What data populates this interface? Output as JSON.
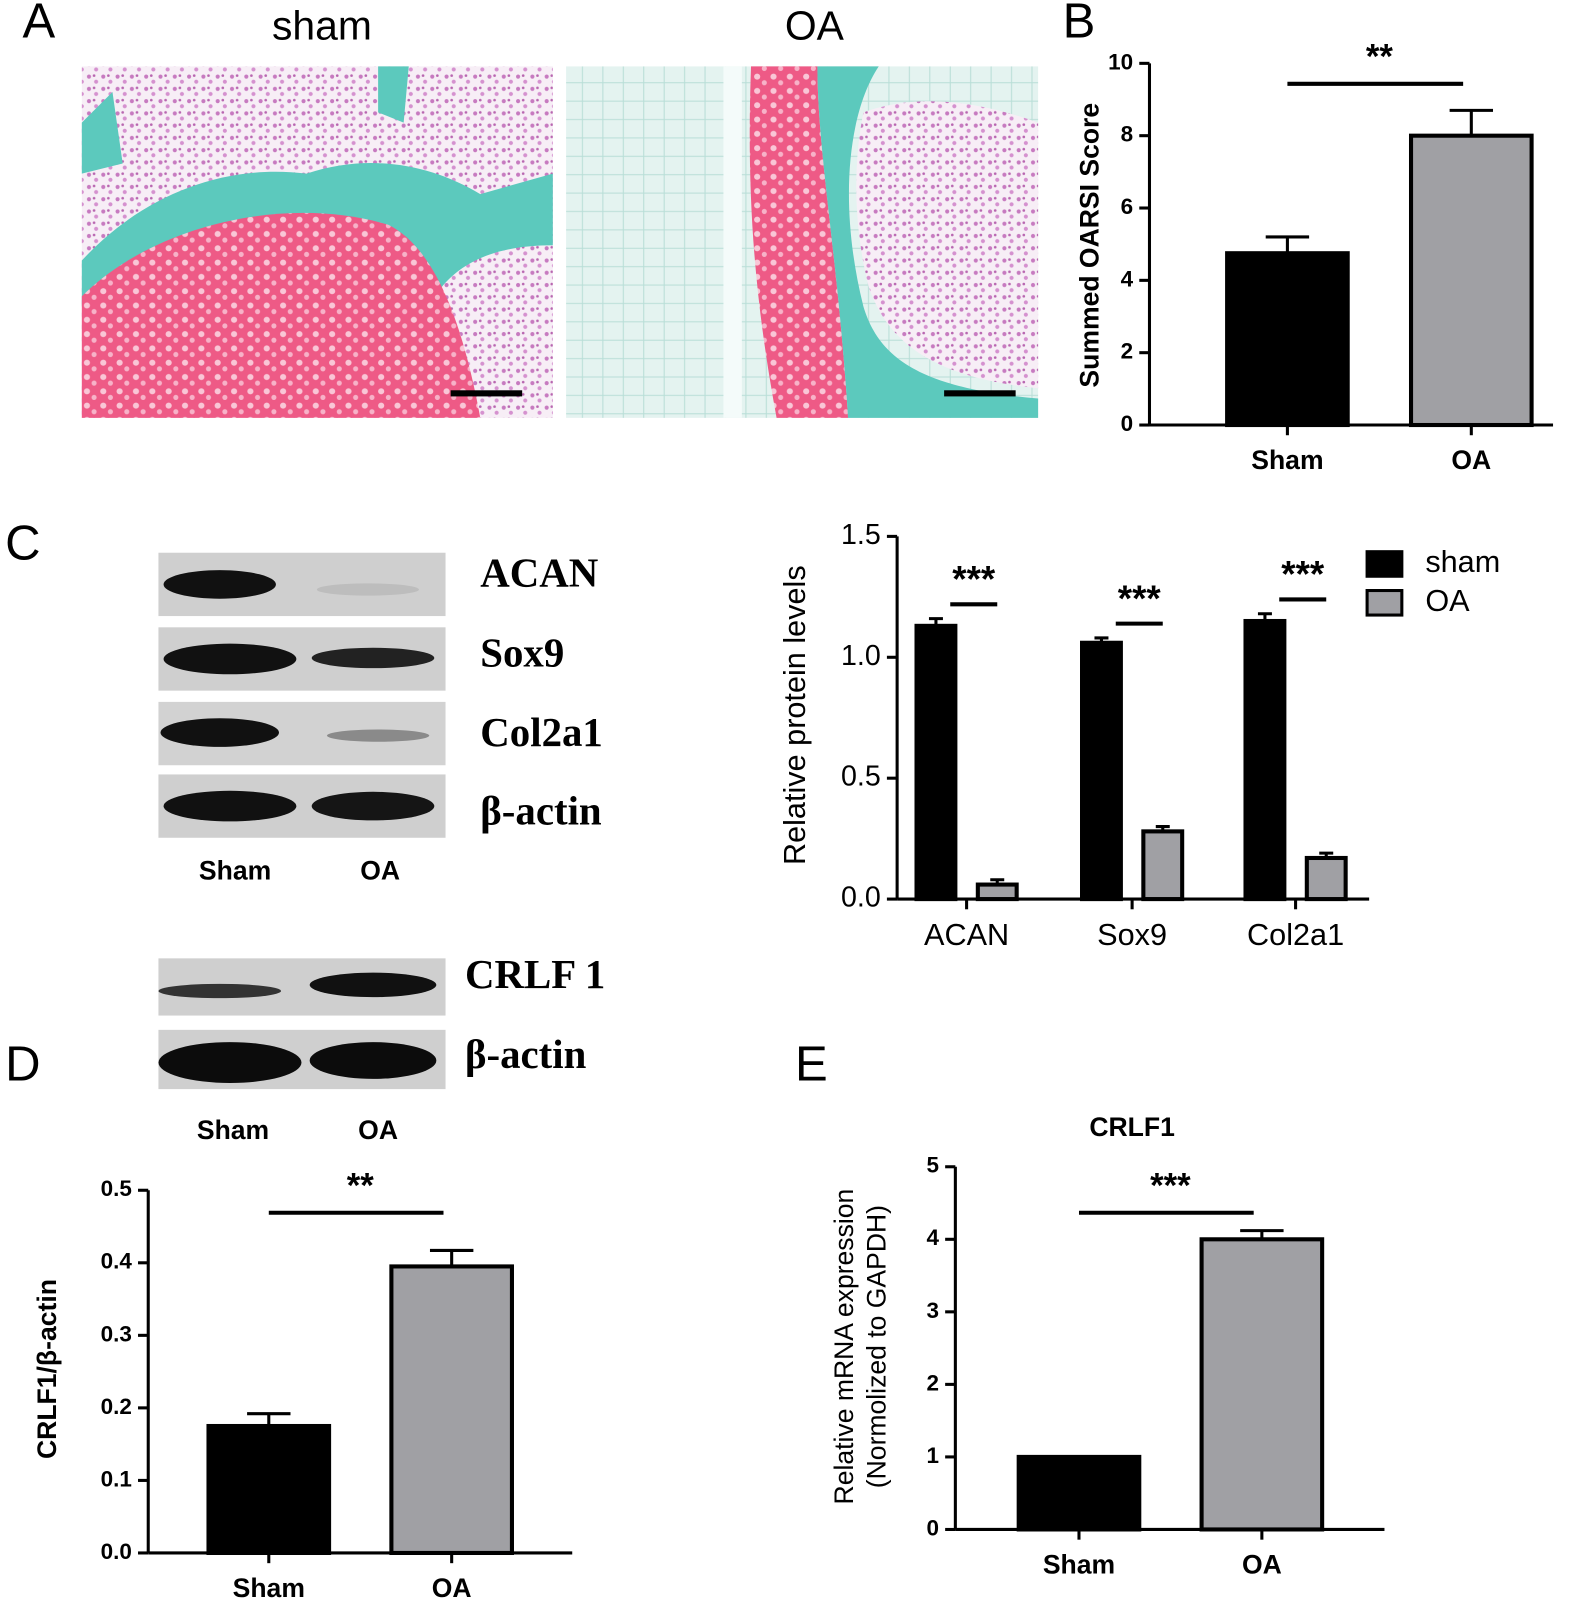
{
  "panel_labels": [
    "A",
    "B",
    "C",
    "D",
    "E"
  ],
  "histology": {
    "labels": [
      "sham",
      "OA"
    ]
  },
  "blot_c": {
    "proteins": [
      "ACAN",
      "Sox9",
      "Col2a1",
      "β-actin"
    ],
    "lanes": [
      "Sham",
      "OA"
    ]
  },
  "blot_d": {
    "proteins": [
      "CRLF 1",
      "β-actin"
    ],
    "lanes": [
      "Sham",
      "OA"
    ]
  },
  "chart_data": [
    {
      "type": "bar",
      "ylabel": "Summed OARSI Score",
      "categories": [
        "Sham",
        "OA"
      ],
      "values": [
        4.75,
        8.0
      ],
      "errors": [
        0.45,
        0.7
      ],
      "colors": [
        "#000000",
        "#a0a0a4"
      ],
      "ylim": [
        0,
        10
      ],
      "yticks": [
        0,
        2,
        4,
        6,
        8,
        10
      ],
      "significance": "**"
    },
    {
      "type": "bar",
      "ylabel": "Relative protein  levels",
      "categories": [
        "ACAN",
        "Sox9",
        "Col2a1"
      ],
      "series": [
        {
          "name": "sham",
          "color": "#000000",
          "values": [
            1.13,
            1.06,
            1.15
          ],
          "errors": [
            0.03,
            0.02,
            0.03
          ]
        },
        {
          "name": "OA",
          "color": "#a0a0a4",
          "values": [
            0.06,
            0.28,
            0.17
          ],
          "errors": [
            0.02,
            0.02,
            0.02
          ]
        }
      ],
      "ylim": [
        0,
        1.5
      ],
      "yticks": [
        {
          "value": 0,
          "label": "0.0"
        },
        0.5,
        {
          "value": 1,
          "label": "1.0"
        },
        1.5
      ],
      "significance": [
        "***",
        "***",
        "***"
      ],
      "legend": "upper right"
    },
    {
      "type": "bar",
      "ylabel": "CRLF1/β-actin",
      "categories": [
        "Sham",
        "OA"
      ],
      "values": [
        0.175,
        0.395
      ],
      "errors": [
        0.017,
        0.022
      ],
      "colors": [
        "#000000",
        "#a0a0a4"
      ],
      "ylim": [
        0,
        0.5
      ],
      "yticks": [
        {
          "value": 0,
          "label": "0.0"
        },
        0.1,
        0.2,
        0.3,
        0.4,
        0.5
      ],
      "significance": "**"
    },
    {
      "type": "bar",
      "title": "CRLF1",
      "ylabel": [
        "Relative mRNA expression",
        "(Normolized to GAPDH)"
      ],
      "categories": [
        "Sham",
        "OA"
      ],
      "values": [
        1.0,
        4.0
      ],
      "errors": [
        0,
        0.12
      ],
      "colors": [
        "#000000",
        "#a0a0a4"
      ],
      "ylim": [
        0,
        5
      ],
      "yticks": [
        0,
        1,
        2,
        3,
        4,
        5
      ],
      "significance": "***"
    }
  ]
}
